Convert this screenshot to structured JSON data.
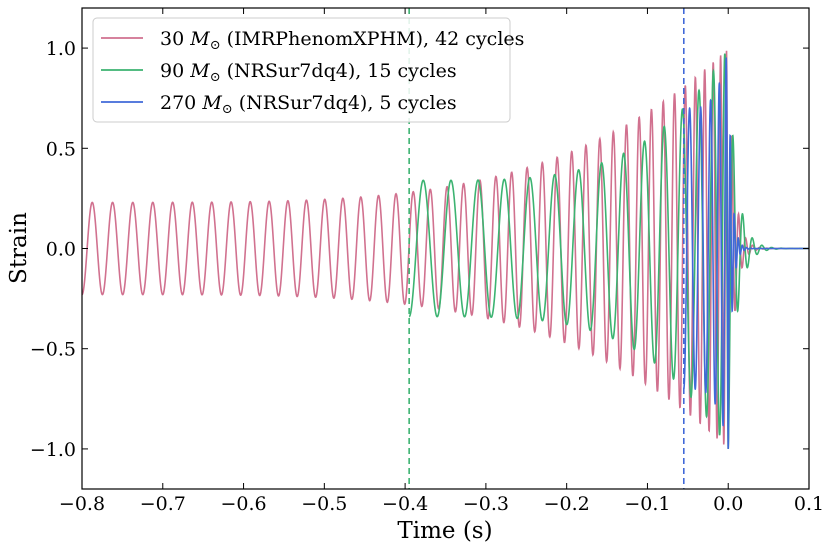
{
  "chart_data": {
    "type": "line",
    "xlabel": "Time (s)",
    "ylabel": "Strain",
    "xlim": [
      -0.8,
      0.1
    ],
    "ylim": [
      -1.2,
      1.2
    ],
    "xticks": [
      -0.8,
      -0.7,
      -0.6,
      -0.5,
      -0.4,
      -0.3,
      -0.2,
      -0.1,
      0.0,
      0.1
    ],
    "xtick_labels": [
      "−0.8",
      "−0.7",
      "−0.6",
      "−0.5",
      "−0.4",
      "−0.3",
      "−0.2",
      "−0.1",
      "0.0",
      "0.1"
    ],
    "yticks": [
      -1.0,
      -0.5,
      0.0,
      0.5,
      1.0
    ],
    "ytick_labels": [
      "−1.0",
      "−0.5",
      "0.0",
      "0.5",
      "1.0"
    ],
    "grid": false,
    "legend_position": "top-left",
    "series": [
      {
        "name": "30 M⊙ (IMRPhenomXPHM), 42 cycles",
        "mass_text": "30",
        "source_text": "(IMRPhenomXPHM), 42 cycles",
        "color": "#d1718f",
        "cycles": 42,
        "t_start": -0.8,
        "t_merger": 0.0,
        "peak_amplitude": 1.0,
        "initial_amplitude": 0.23
      },
      {
        "name": "90 M⊙ (NRSur7dq4), 15 cycles",
        "mass_text": "90",
        "source_text": "(NRSur7dq4), 15 cycles",
        "color": "#3cb371",
        "cycles": 15,
        "t_start": -0.395,
        "t_merger": 0.0,
        "peak_amplitude": 1.0,
        "initial_amplitude": 0.34
      },
      {
        "name": "270 M⊙ (NRSur7dq4), 5 cycles",
        "mass_text": "270",
        "source_text": "(NRSur7dq4), 5 cycles",
        "color": "#4169d8",
        "cycles": 5,
        "t_start": -0.055,
        "t_merger": 0.0,
        "peak_amplitude": 1.0,
        "initial_amplitude": 0.7
      }
    ],
    "vlines": [
      {
        "x": -0.395,
        "color": "#3cb371",
        "style": "dashed"
      },
      {
        "x": -0.055,
        "color": "#4169d8",
        "style": "dashed"
      }
    ]
  }
}
